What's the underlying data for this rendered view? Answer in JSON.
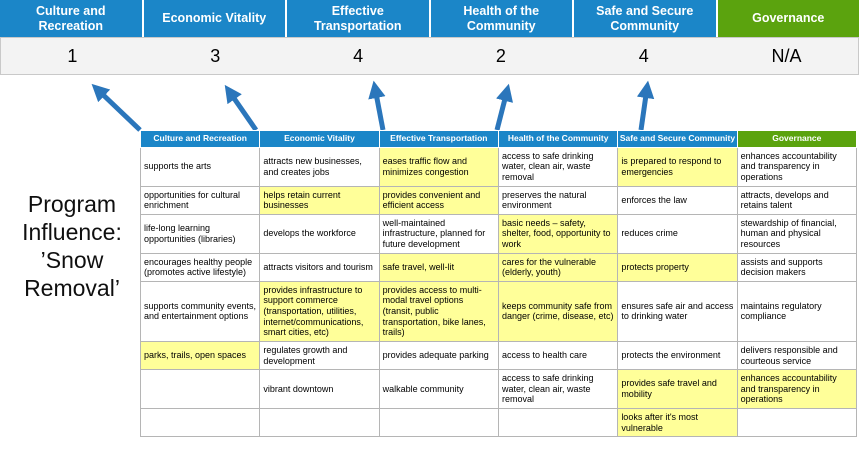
{
  "colors": {
    "header_blue": "#1b86c8",
    "header_green": "#5ba30e",
    "highlight_yellow": "#ffff99",
    "arrow_blue": "#2b76bb",
    "score_band_bg": "#f3f3f3",
    "score_band_border": "#c9c9c9",
    "table_border": "#b5b5b5"
  },
  "program": {
    "label": "Program Influence: ’Snow Removal’"
  },
  "scoreboard": {
    "columns": [
      {
        "label": "Culture and Recreation",
        "score": "1"
      },
      {
        "label": "Economic Vitality",
        "score": "3"
      },
      {
        "label": "Effective Transportation",
        "score": "4"
      },
      {
        "label": "Health of the Community",
        "score": "2"
      },
      {
        "label": "Safe and Secure Community",
        "score": "4"
      },
      {
        "label": "Governance",
        "score": "N/A"
      }
    ]
  },
  "matrix": {
    "headers": [
      "Culture and Recreation",
      "Economic Vitality",
      "Effective Transportation",
      "Health of the Community",
      "Safe and Secure Community",
      "Governance"
    ],
    "rows": [
      [
        {
          "text": "supports the arts",
          "highlight": false
        },
        {
          "text": "attracts new businesses, and creates jobs",
          "highlight": false
        },
        {
          "text": "eases traffic flow and minimizes congestion",
          "highlight": true
        },
        {
          "text": "access to safe drinking water, clean air, waste removal",
          "highlight": false
        },
        {
          "text": "is prepared to respond to emergencies",
          "highlight": true
        },
        {
          "text": "enhances accountability and transparency in operations",
          "highlight": false
        }
      ],
      [
        {
          "text": "opportunities for cultural enrichment",
          "highlight": false
        },
        {
          "text": "helps retain current businesses",
          "highlight": true
        },
        {
          "text": "provides convenient and efficient access",
          "highlight": true
        },
        {
          "text": "preserves the natural environment",
          "highlight": false
        },
        {
          "text": "enforces the law",
          "highlight": false
        },
        {
          "text": "attracts, develops and retains talent",
          "highlight": false
        }
      ],
      [
        {
          "text": "life-long learning opportunities (libraries)",
          "highlight": false
        },
        {
          "text": "develops the workforce",
          "highlight": false
        },
        {
          "text": "well-maintained infrastructure, planned for future development",
          "highlight": false
        },
        {
          "text": "basic needs – safety, shelter, food, opportunity to work",
          "highlight": true
        },
        {
          "text": "reduces crime",
          "highlight": false
        },
        {
          "text": "stewardship of financial, human and physical resources",
          "highlight": false
        }
      ],
      [
        {
          "text": "encourages healthy people (promotes active lifestyle)",
          "highlight": false
        },
        {
          "text": "attracts visitors and tourism",
          "highlight": false
        },
        {
          "text": "safe travel, well-lit",
          "highlight": true
        },
        {
          "text": "cares for the vulnerable (elderly, youth)",
          "highlight": true
        },
        {
          "text": "protects property",
          "highlight": true
        },
        {
          "text": "assists and supports decision makers",
          "highlight": false
        }
      ],
      [
        {
          "text": "supports community events, and entertainment options",
          "highlight": false
        },
        {
          "text": "provides infrastructure to support commerce (transportation, utilities, internet/communications, smart cities, etc)",
          "highlight": true
        },
        {
          "text": "provides access to multi-modal travel options (transit, public transportation, bike lanes, trails)",
          "highlight": true
        },
        {
          "text": "keeps community safe from danger (crime, disease, etc)",
          "highlight": true
        },
        {
          "text": "ensures safe air and access to drinking water",
          "highlight": false
        },
        {
          "text": "maintains regulatory compliance",
          "highlight": false
        }
      ],
      [
        {
          "text": "parks, trails, open spaces",
          "highlight": true
        },
        {
          "text": "regulates growth and development",
          "highlight": false
        },
        {
          "text": "provides adequate parking",
          "highlight": false
        },
        {
          "text": "access to health care",
          "highlight": false
        },
        {
          "text": "protects the environment",
          "highlight": false
        },
        {
          "text": "delivers responsible and courteous service",
          "highlight": false
        }
      ],
      [
        {
          "text": "",
          "highlight": false
        },
        {
          "text": "vibrant downtown",
          "highlight": false
        },
        {
          "text": "walkable community",
          "highlight": false
        },
        {
          "text": "access to safe drinking water, clean air, waste removal",
          "highlight": false
        },
        {
          "text": "provides safe travel and mobility",
          "highlight": true
        },
        {
          "text": "enhances accountability and transparency in operations",
          "highlight": true
        }
      ],
      [
        {
          "text": "",
          "highlight": false
        },
        {
          "text": "",
          "highlight": false
        },
        {
          "text": "",
          "highlight": false
        },
        {
          "text": "",
          "highlight": false
        },
        {
          "text": "looks after it's most vulnerable",
          "highlight": true
        },
        {
          "text": "",
          "highlight": false
        }
      ]
    ]
  }
}
